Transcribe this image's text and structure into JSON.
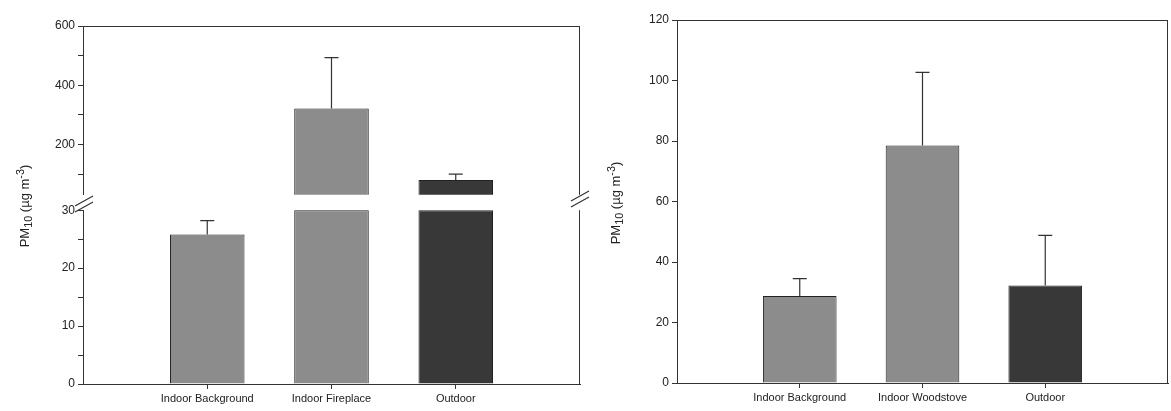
{
  "chart_data": [
    {
      "type": "bar",
      "values": [
        null,
        321,
        80
      ],
      "colors": [
        "#8c8c8c",
        "#8c8c8c",
        "#383838"
      ],
      "errors": [
        null,
        [
          321,
          493
        ],
        [
          80,
          100
        ]
      ],
      "ylim": [
        30,
        600
      ],
      "yticks": [
        {
          "value": 100,
          "label": null
        },
        200,
        {
          "value": 300,
          "label": null
        },
        400,
        {
          "value": 500,
          "label": null
        },
        600
      ],
      "tick_labels": "y"
    },
    {
      "type": "bar",
      "categories": [
        "Indoor Background",
        "Indoor Fireplace",
        "Outdoor"
      ],
      "values": [
        25.8,
        30,
        30
      ],
      "colors": [
        "#8c8c8c",
        "#8c8c8c",
        "#383838"
      ],
      "errors": [
        [
          25.8,
          28.2
        ],
        null,
        null
      ],
      "ylim": [
        0,
        30
      ],
      "yticks": [
        0,
        {
          "value": 5,
          "label": null
        },
        10,
        {
          "value": 15,
          "label": null
        },
        20,
        {
          "value": 25,
          "label": null
        },
        30
      ],
      "ylabel": "PM$_{10}$ (µg m$^{-3}$)"
    },
    {
      "type": "bar",
      "categories": [
        "Indoor Background",
        "Indoor Woodstove",
        "Outdoor"
      ],
      "values": [
        28.8,
        78.5,
        32.2
      ],
      "colors": [
        "#8c8c8c",
        "#8c8c8c",
        "#383838"
      ],
      "errors": [
        [
          28.8,
          34.5
        ],
        [
          78.5,
          102.7
        ],
        [
          32.2,
          48.8
        ]
      ],
      "ylim": [
        0,
        120
      ],
      "yticks": [
        0,
        20,
        40,
        60,
        80,
        100,
        120
      ],
      "ylabel": "PM$_{10}$ (µg m$^{-3}$)"
    }
  ]
}
